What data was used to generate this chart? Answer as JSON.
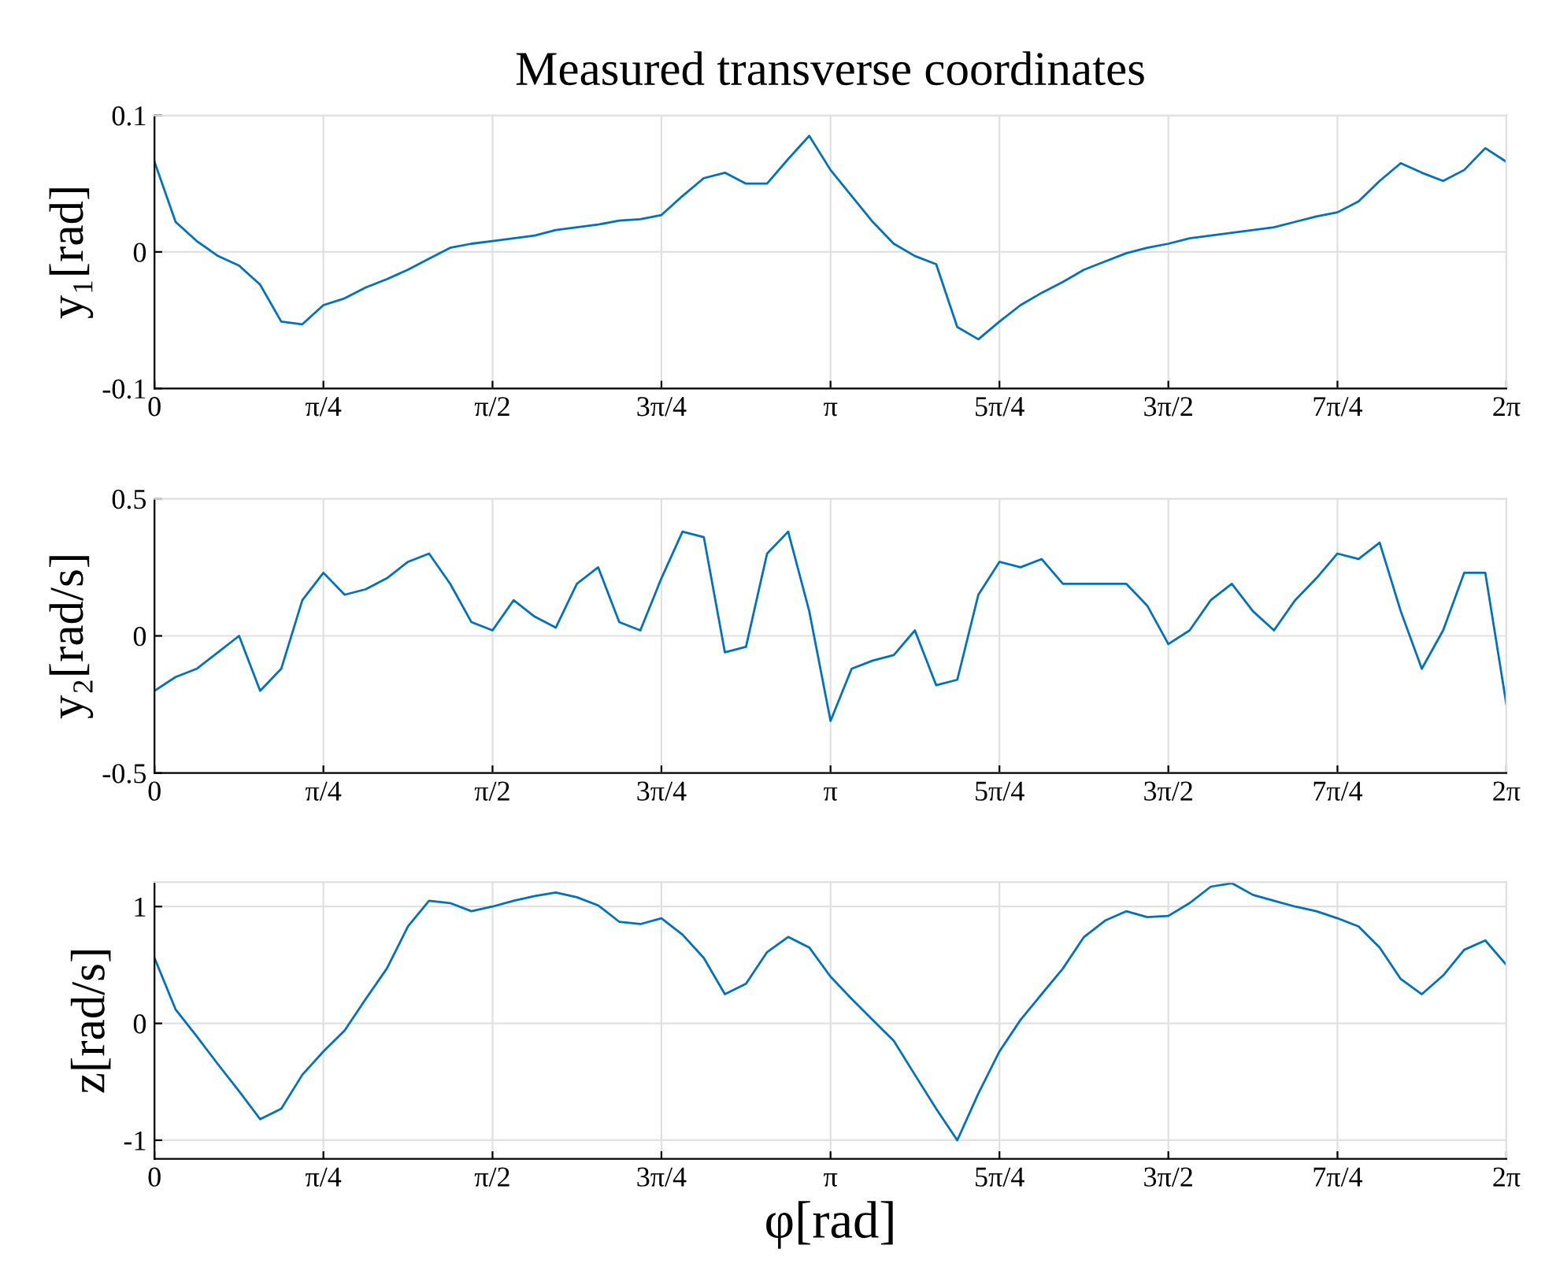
{
  "chart_data": [
    {
      "type": "line",
      "title": "Measured transverse coordinates",
      "ylabel": "y₁[rad]",
      "x": [
        0,
        0.098,
        0.196,
        0.295,
        0.393,
        0.491,
        0.589,
        0.687,
        0.785,
        0.884,
        0.982,
        1.08,
        1.178,
        1.276,
        1.374,
        1.473,
        1.571,
        1.669,
        1.767,
        1.865,
        1.963,
        2.062,
        2.16,
        2.258,
        2.356,
        2.454,
        2.553,
        2.651,
        2.749,
        2.847,
        2.945,
        3.043,
        3.142,
        3.24,
        3.338,
        3.436,
        3.534,
        3.633,
        3.731,
        3.829,
        3.927,
        4.025,
        4.123,
        4.222,
        4.32,
        4.418,
        4.516,
        4.614,
        4.712,
        4.811,
        4.909,
        5.007,
        5.105,
        5.203,
        5.301,
        5.4,
        5.498,
        5.596,
        5.694,
        5.792,
        5.89,
        5.989,
        6.087,
        6.185,
        6.283
      ],
      "series": [
        {
          "color": "#0072bd",
          "values": [
            0.066,
            0.022,
            0.008,
            -0.003,
            -0.01,
            -0.024,
            -0.051,
            -0.053,
            -0.039,
            -0.034,
            -0.026,
            -0.02,
            -0.013,
            -0.005,
            0.003,
            0.006,
            0.008,
            0.01,
            0.012,
            0.016,
            0.018,
            0.02,
            0.023,
            0.024,
            0.027,
            0.041,
            0.054,
            0.058,
            0.05,
            0.05,
            0.068,
            0.085,
            0.06,
            0.041,
            0.022,
            0.006,
            -0.003,
            -0.009,
            -0.055,
            -0.064,
            -0.051,
            -0.039,
            -0.03,
            -0.022,
            -0.013,
            -0.007,
            -0.001,
            0.003,
            0.006,
            0.01,
            0.012,
            0.014,
            0.016,
            0.018,
            0.022,
            0.026,
            0.029,
            0.037,
            0.052,
            0.065,
            0.058,
            0.052,
            0.06,
            0.076,
            0.066
          ]
        }
      ],
      "xlim": [
        0,
        6.283
      ],
      "ylim": [
        -0.1,
        0.1
      ],
      "xticks": [
        0,
        {
          "value": 0.785,
          "label": "π/4"
        },
        {
          "value": 1.571,
          "label": "π/2"
        },
        {
          "value": 2.356,
          "label": "3π/4"
        },
        {
          "value": 3.142,
          "label": "π"
        },
        {
          "value": 3.927,
          "label": "5π/4"
        },
        {
          "value": 4.712,
          "label": "3π/2"
        },
        {
          "value": 5.498,
          "label": "7π/4"
        },
        {
          "value": 6.283,
          "label": "2π"
        }
      ],
      "yticks": [
        {
          "value": -0.1,
          "label": "-0.1"
        },
        0,
        0.1
      ],
      "grid": true,
      "marker": "none",
      "line_style": "solid"
    },
    {
      "type": "line",
      "ylabel": "y₂[rad/s]",
      "x": [
        0,
        0.098,
        0.196,
        0.295,
        0.393,
        0.491,
        0.589,
        0.687,
        0.785,
        0.884,
        0.982,
        1.08,
        1.178,
        1.276,
        1.374,
        1.473,
        1.571,
        1.669,
        1.767,
        1.865,
        1.963,
        2.062,
        2.16,
        2.258,
        2.356,
        2.454,
        2.553,
        2.651,
        2.749,
        2.847,
        2.945,
        3.043,
        3.142,
        3.24,
        3.338,
        3.436,
        3.534,
        3.633,
        3.731,
        3.829,
        3.927,
        4.025,
        4.123,
        4.222,
        4.32,
        4.418,
        4.516,
        4.614,
        4.712,
        4.811,
        4.909,
        5.007,
        5.105,
        5.203,
        5.301,
        5.4,
        5.498,
        5.596,
        5.694,
        5.792,
        5.89,
        5.989,
        6.087,
        6.185,
        6.283
      ],
      "series": [
        {
          "color": "#0072bd",
          "values": [
            -0.2,
            -0.15,
            -0.12,
            -0.06,
            0.0,
            -0.2,
            -0.12,
            0.13,
            0.23,
            0.15,
            0.17,
            0.21,
            0.27,
            0.3,
            0.19,
            0.05,
            0.02,
            0.13,
            0.07,
            0.03,
            0.19,
            0.25,
            0.05,
            0.02,
            0.21,
            0.38,
            0.36,
            -0.06,
            -0.04,
            0.3,
            0.38,
            0.09,
            -0.31,
            -0.12,
            -0.09,
            -0.07,
            0.02,
            -0.18,
            -0.16,
            0.15,
            0.27,
            0.25,
            0.28,
            0.19,
            0.19,
            0.19,
            0.19,
            0.11,
            -0.03,
            0.02,
            0.13,
            0.19,
            0.09,
            0.02,
            0.13,
            0.21,
            0.3,
            0.28,
            0.34,
            0.09,
            -0.12,
            0.02,
            0.23,
            0.23,
            -0.25
          ]
        }
      ],
      "xlim": [
        0,
        6.283
      ],
      "ylim": [
        -0.5,
        0.5
      ],
      "xticks": [
        0,
        {
          "value": 0.785,
          "label": "π/4"
        },
        {
          "value": 1.571,
          "label": "π/2"
        },
        {
          "value": 2.356,
          "label": "3π/4"
        },
        {
          "value": 3.142,
          "label": "π"
        },
        {
          "value": 3.927,
          "label": "5π/4"
        },
        {
          "value": 4.712,
          "label": "3π/2"
        },
        {
          "value": 5.498,
          "label": "7π/4"
        },
        {
          "value": 6.283,
          "label": "2π"
        }
      ],
      "yticks": [
        {
          "value": -0.5,
          "label": "-0.5"
        },
        0,
        0.5
      ],
      "grid": true,
      "marker": "none",
      "line_style": "solid"
    },
    {
      "type": "line",
      "ylabel": "z[rad/s]",
      "xlabel": "φ[rad]",
      "x": [
        0,
        0.098,
        0.196,
        0.295,
        0.393,
        0.491,
        0.589,
        0.687,
        0.785,
        0.884,
        0.982,
        1.08,
        1.178,
        1.276,
        1.374,
        1.473,
        1.571,
        1.669,
        1.767,
        1.865,
        1.963,
        2.062,
        2.16,
        2.258,
        2.356,
        2.454,
        2.553,
        2.651,
        2.749,
        2.847,
        2.945,
        3.043,
        3.142,
        3.24,
        3.338,
        3.436,
        3.534,
        3.633,
        3.731,
        3.829,
        3.927,
        4.025,
        4.123,
        4.222,
        4.32,
        4.418,
        4.516,
        4.614,
        4.712,
        4.811,
        4.909,
        5.007,
        5.105,
        5.203,
        5.301,
        5.4,
        5.498,
        5.596,
        5.694,
        5.792,
        5.89,
        5.989,
        6.087,
        6.185,
        6.283
      ],
      "series": [
        {
          "color": "#0072bd",
          "values": [
            0.56,
            0.12,
            -0.11,
            -0.35,
            -0.58,
            -0.82,
            -0.73,
            -0.44,
            -0.24,
            -0.06,
            0.21,
            0.47,
            0.83,
            1.05,
            1.03,
            0.96,
            1.0,
            1.05,
            1.09,
            1.12,
            1.08,
            1.01,
            0.87,
            0.85,
            0.9,
            0.76,
            0.56,
            0.25,
            0.34,
            0.61,
            0.74,
            0.65,
            0.4,
            0.21,
            0.03,
            -0.15,
            -0.44,
            -0.73,
            -1.0,
            -0.6,
            -0.24,
            0.03,
            0.25,
            0.47,
            0.74,
            0.88,
            0.96,
            0.91,
            0.92,
            1.03,
            1.17,
            1.2,
            1.1,
            1.05,
            1.0,
            0.96,
            0.9,
            0.83,
            0.65,
            0.38,
            0.25,
            0.41,
            0.63,
            0.71,
            0.5
          ]
        }
      ],
      "xlim": [
        0,
        6.283
      ],
      "ylim": [
        -1.16,
        1.21
      ],
      "xticks": [
        0,
        {
          "value": 0.785,
          "label": "π/4"
        },
        {
          "value": 1.571,
          "label": "π/2"
        },
        {
          "value": 2.356,
          "label": "3π/4"
        },
        {
          "value": 3.142,
          "label": "π"
        },
        {
          "value": 3.927,
          "label": "5π/4"
        },
        {
          "value": 4.712,
          "label": "3π/2"
        },
        {
          "value": 5.498,
          "label": "7π/4"
        },
        {
          "value": 6.283,
          "label": "2π"
        }
      ],
      "yticks": [
        {
          "value": -1,
          "label": "-1"
        },
        0,
        1
      ],
      "grid": true,
      "marker": "none",
      "line_style": "solid"
    }
  ]
}
